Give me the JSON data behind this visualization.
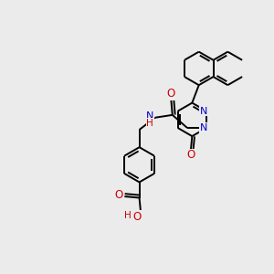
{
  "background_color": "#ebebeb",
  "atom_colors": {
    "C": "#000000",
    "N": "#0000cc",
    "O": "#cc0000",
    "H": "#cc0000"
  },
  "bond_color": "#000000",
  "bond_width": 1.4,
  "figsize": [
    3.0,
    3.0
  ],
  "dpi": 100
}
